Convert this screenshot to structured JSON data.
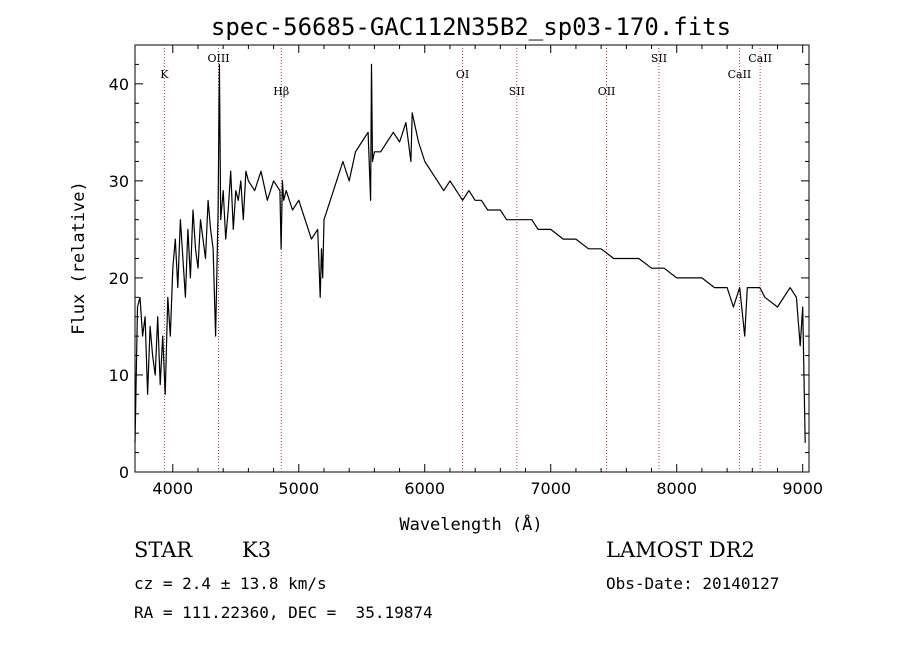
{
  "chart_data": {
    "type": "line",
    "title": "spec-56685-GAC112N35B2_sp03-170.fits",
    "xlabel": "Wavelength (Å)",
    "ylabel": "Flux (relative)",
    "xlim": [
      3700,
      9050
    ],
    "ylim": [
      0,
      44
    ],
    "xticks": [
      4000,
      5000,
      6000,
      7000,
      8000,
      9000
    ],
    "yticks": [
      0,
      10,
      20,
      30,
      40
    ],
    "grid": false,
    "series": [
      {
        "x": [
          3700,
          3720,
          3740,
          3760,
          3780,
          3800,
          3820,
          3840,
          3860,
          3880,
          3900,
          3920,
          3940,
          3960,
          3980,
          4000,
          4020,
          4040,
          4060,
          4080,
          4100,
          4120,
          4140,
          4160,
          4180,
          4200,
          4220,
          4240,
          4260,
          4280,
          4300,
          4320,
          4340,
          4360,
          4370,
          4380,
          4400,
          4420,
          4440,
          4460,
          4480,
          4500,
          4520,
          4540,
          4560,
          4580,
          4600,
          4650,
          4700,
          4750,
          4800,
          4850,
          4860,
          4870,
          4880,
          4900,
          4950,
          5000,
          5050,
          5100,
          5150,
          5170,
          5180,
          5190,
          5200,
          5250,
          5300,
          5350,
          5400,
          5450,
          5500,
          5550,
          5570,
          5577,
          5585,
          5600,
          5650,
          5700,
          5750,
          5800,
          5850,
          5890,
          5900,
          5950,
          6000,
          6050,
          6100,
          6150,
          6200,
          6250,
          6300,
          6350,
          6400,
          6450,
          6500,
          6550,
          6600,
          6650,
          6700,
          6750,
          6800,
          6850,
          6900,
          6950,
          7000,
          7100,
          7200,
          7300,
          7400,
          7500,
          7600,
          7700,
          7800,
          7900,
          8000,
          8100,
          8200,
          8300,
          8400,
          8450,
          8500,
          8540,
          8560,
          8600,
          8660,
          8700,
          8800,
          8900,
          8950,
          8980,
          9000,
          9020
        ],
        "y": [
          3,
          17,
          18,
          14,
          16,
          8,
          15,
          12,
          10,
          16,
          9,
          14,
          8,
          18,
          14,
          21,
          24,
          19,
          26,
          22,
          18,
          25,
          20,
          27,
          23,
          21,
          26,
          24,
          22,
          28,
          25,
          23,
          14,
          27,
          42,
          26,
          29,
          24,
          27,
          31,
          25,
          29,
          28,
          30,
          26,
          31,
          30,
          29,
          31,
          28,
          30,
          29,
          23,
          30,
          28,
          29,
          27,
          28,
          26,
          24,
          25,
          18,
          23,
          20,
          26,
          28,
          30,
          32,
          30,
          33,
          34,
          35,
          28,
          42,
          32,
          33,
          33,
          34,
          35,
          34,
          36,
          32,
          37,
          34,
          32,
          31,
          30,
          29,
          30,
          29,
          28,
          29,
          28,
          28,
          27,
          27,
          27,
          26,
          26,
          26,
          26,
          26,
          25,
          25,
          25,
          24,
          24,
          23,
          23,
          22,
          22,
          22,
          21,
          21,
          20,
          20,
          20,
          19,
          19,
          17,
          19,
          14,
          19,
          19,
          19,
          18,
          17,
          19,
          18,
          13,
          17,
          3
        ]
      }
    ],
    "lines": [
      {
        "label": "K",
        "x": 3933
      },
      {
        "label": "OIII",
        "x": 4363
      },
      {
        "label": "Hβ",
        "x": 4861
      },
      {
        "label": "OI",
        "x": 6300
      },
      {
        "label": "SII",
        "x": 6731
      },
      {
        "label": "OII",
        "x": 7443
      },
      {
        "label": "SII",
        "x": 7859
      },
      {
        "label": "CaII",
        "x": 8498
      },
      {
        "label": "CaII",
        "x": 8662
      }
    ]
  },
  "info": {
    "obj_class": "STAR",
    "subclass": "K3",
    "cz": "cz = 2.4 ± 13.8 km/s",
    "coords": "RA = 111.22360, DEC =  35.19874",
    "survey": "LAMOST DR2",
    "obs_date": "Obs-Date: 20140127"
  }
}
